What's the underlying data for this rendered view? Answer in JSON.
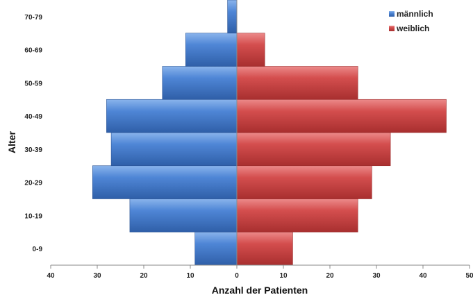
{
  "chart_data": {
    "type": "bar",
    "orientation": "horizontal-diverging",
    "categories": [
      "0-9",
      "10-19",
      "20-29",
      "30-39",
      "40-49",
      "50-59",
      "60-69",
      "70-79"
    ],
    "series": [
      {
        "name": "männlich",
        "values": [
          9,
          23,
          31,
          27,
          28,
          16,
          11,
          2
        ],
        "color": "#4a7fd0",
        "side": "left"
      },
      {
        "name": "weiblich",
        "values": [
          12,
          26,
          29,
          33,
          45,
          26,
          6,
          0
        ],
        "color": "#d44a4a",
        "side": "right"
      }
    ],
    "xlabel": "Anzahl der Patienten",
    "ylabel": "Alter",
    "xlim": [
      -40,
      50
    ],
    "xticks": [
      -40,
      -30,
      -20,
      -10,
      0,
      10,
      20,
      30,
      40,
      50
    ],
    "xtick_labels": [
      "40",
      "30",
      "20",
      "10",
      "0",
      "10",
      "20",
      "30",
      "40",
      "50"
    ],
    "grid": false,
    "legend_position": "top-right"
  }
}
